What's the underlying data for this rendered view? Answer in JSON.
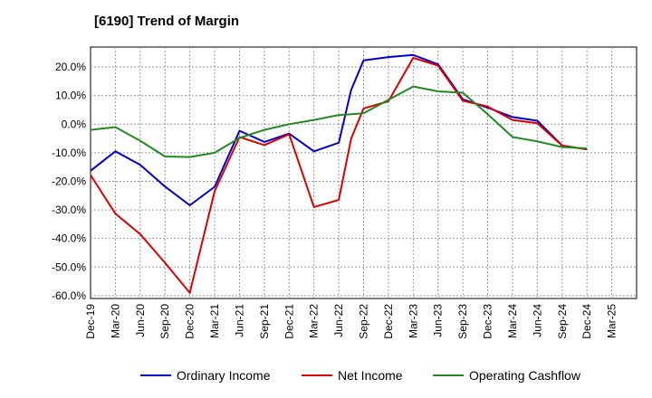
{
  "chart_data": {
    "type": "line",
    "title": "[6190]  Trend of Margin",
    "xlabel": "",
    "ylabel": "",
    "ylim": [
      -61,
      27
    ],
    "yticks": [
      20,
      10,
      0,
      -10,
      -20,
      -30,
      -40,
      -50,
      -60
    ],
    "ytick_labels": [
      "20.0%",
      "10.0%",
      "0.0%",
      "-10.0%",
      "-20.0%",
      "-30.0%",
      "-40.0%",
      "-50.0%",
      "-60.0%"
    ],
    "x_labels": [
      "Dec-19",
      "Mar-20",
      "Jun-20",
      "Sep-20",
      "Dec-20",
      "Mar-21",
      "Jun-21",
      "Sep-21",
      "Dec-21",
      "Mar-22",
      "Jun-22",
      "Sep-22",
      "Dec-22",
      "Mar-23",
      "Jun-23",
      "Sep-23",
      "Dec-23",
      "Mar-24",
      "Jun-24",
      "Sep-24",
      "Dec-24",
      "Mar-25"
    ],
    "grid": true,
    "legend_position": "bottom",
    "series": [
      {
        "name": "Ordinary Income",
        "color": "#0000cc",
        "points": [
          [
            0,
            -16.3
          ],
          [
            1,
            -9.5
          ],
          [
            2,
            -14.2
          ],
          [
            3,
            -21.8
          ],
          [
            4,
            -28.4
          ],
          [
            5,
            -21.9
          ],
          [
            6,
            -2.3
          ],
          [
            7,
            -6.2
          ],
          [
            8,
            -3.3
          ],
          [
            9,
            -9.5
          ],
          [
            10,
            -6.5
          ],
          [
            10.5,
            12.0
          ],
          [
            11,
            22.3
          ],
          [
            12,
            23.5
          ],
          [
            13,
            24.2
          ],
          [
            14,
            21.0
          ],
          [
            15,
            8.7
          ],
          [
            16,
            5.8
          ],
          [
            17,
            2.5
          ],
          [
            18,
            1.2
          ],
          [
            19,
            -7.5
          ],
          [
            20,
            -8.8
          ]
        ]
      },
      {
        "name": "Net Income",
        "color": "#dd0000",
        "points": [
          [
            0,
            -17.8
          ],
          [
            1,
            -31.3
          ],
          [
            2,
            -38.5
          ],
          [
            3,
            -48.5
          ],
          [
            4,
            -59.0
          ],
          [
            5,
            -23.5
          ],
          [
            6,
            -4.5
          ],
          [
            7,
            -7.3
          ],
          [
            8,
            -3.5
          ],
          [
            9,
            -29.0
          ],
          [
            10,
            -26.5
          ],
          [
            10.5,
            -5.0
          ],
          [
            11,
            5.5
          ],
          [
            12,
            8.0
          ],
          [
            13,
            23.2
          ],
          [
            14,
            20.5
          ],
          [
            15,
            8.2
          ],
          [
            16,
            6.2
          ],
          [
            17,
            1.5
          ],
          [
            18,
            0.3
          ],
          [
            19,
            -7.5
          ],
          [
            20,
            -8.8
          ]
        ]
      },
      {
        "name": "Operating Cashflow",
        "color": "#228822",
        "points": [
          [
            0,
            -2.0
          ],
          [
            1,
            -1.0
          ],
          [
            2,
            -5.8
          ],
          [
            3,
            -11.3
          ],
          [
            4,
            -11.5
          ],
          [
            5,
            -10.0
          ],
          [
            6,
            -4.8
          ],
          [
            7,
            -2.0
          ],
          [
            8,
            0.0
          ],
          [
            9,
            1.5
          ],
          [
            10,
            3.2
          ],
          [
            11,
            3.8
          ],
          [
            12,
            8.5
          ],
          [
            13,
            13.2
          ],
          [
            14,
            11.5
          ],
          [
            15,
            11.0
          ],
          [
            16,
            3.5
          ],
          [
            17,
            -4.5
          ],
          [
            18,
            -6.0
          ],
          [
            19,
            -8.0
          ],
          [
            20,
            -8.5
          ]
        ]
      }
    ]
  }
}
